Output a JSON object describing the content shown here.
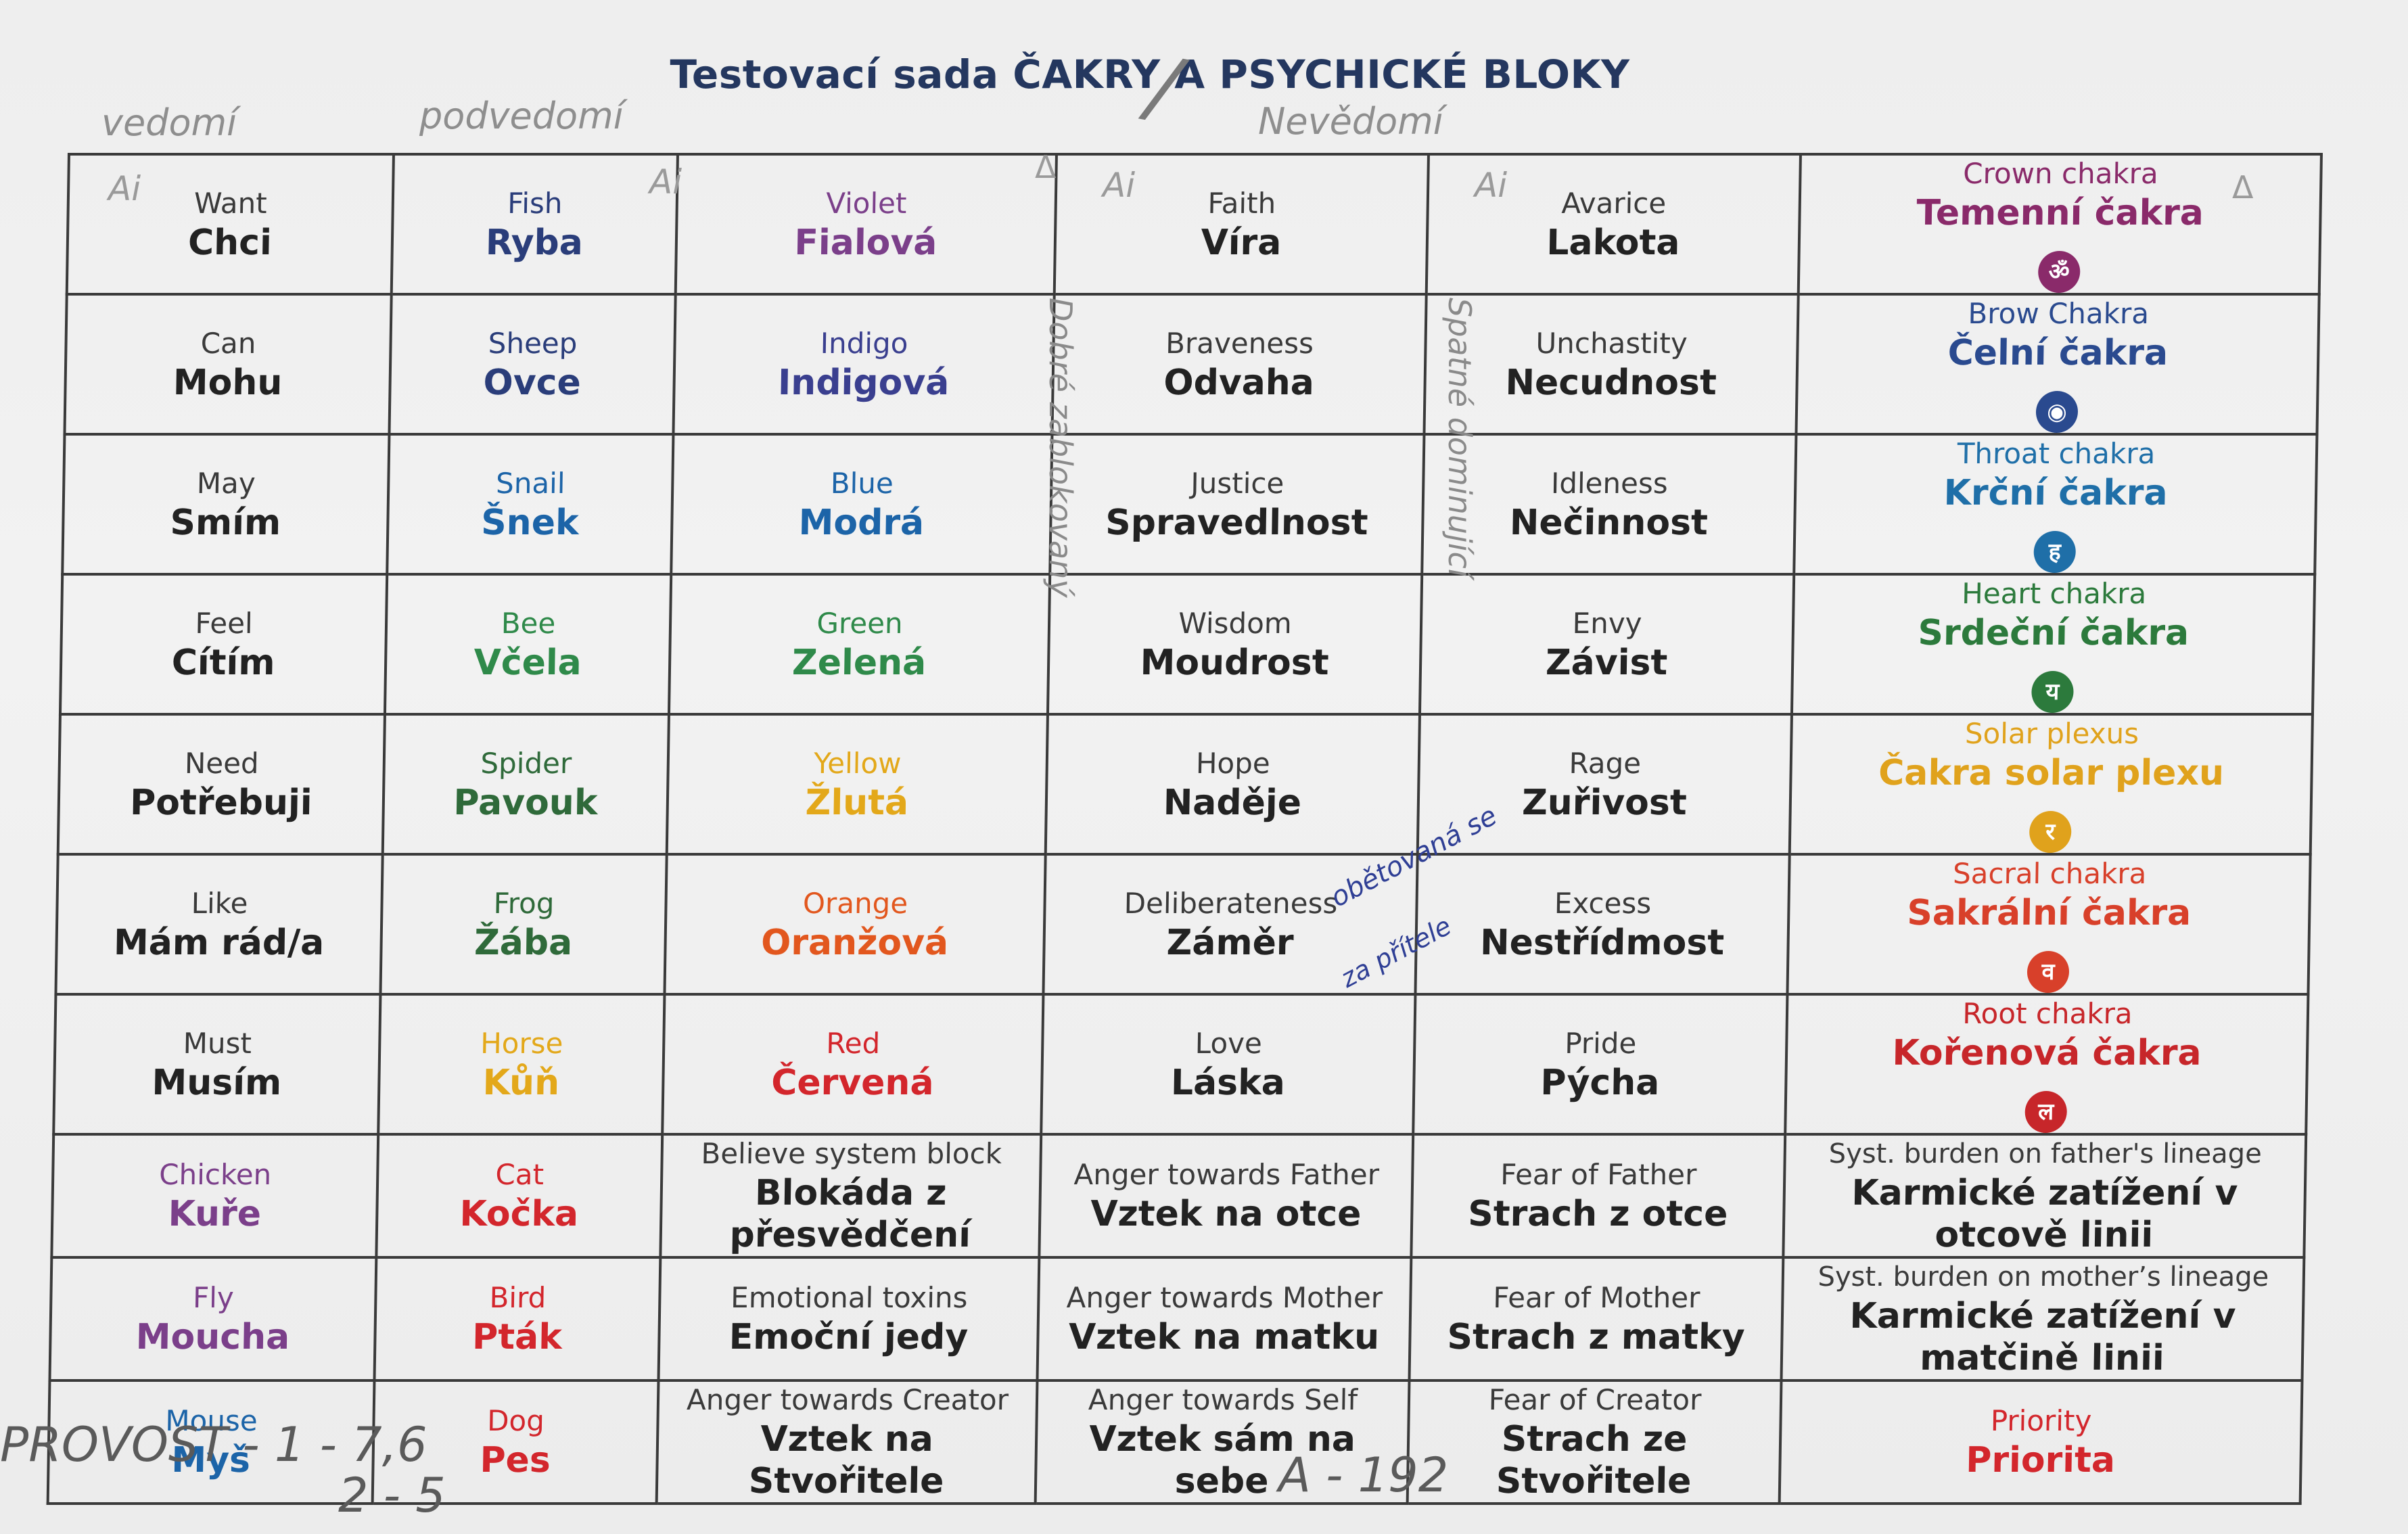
{
  "title": "Testovací sada ČAKRY A PSYCHICKÉ BLOKY",
  "handwriting": {
    "col1_header": "vedomí",
    "col2_header": "podvedomí",
    "col4_header": "Nevědomí",
    "ai_mark": "Ai",
    "triangle_mark": "Δ",
    "vertical_left": "Dobré zablokovaný",
    "vertical_right": "Spatné dominující",
    "love_note_1": "obětovaná se",
    "love_note_2": "za přítele",
    "bottom_left_1": "PROVOST - 1 - 7,6",
    "bottom_left_2": "2 - 5",
    "bottom_center": "A - 192"
  },
  "colors": {
    "ink": "#2d2d2d",
    "navy": "#2a3d7a",
    "purple": "#7b3f8a",
    "indigo": "#3a3f8f",
    "blue": "#1c64a8",
    "green": "#2f8a4a",
    "yellow": "#e3a81a",
    "orange": "#e2571e",
    "red": "#d3262c",
    "crown": "#8a2a6a",
    "brow": "#2a4a8f",
    "throat": "#1f6fa8",
    "heart": "#2c7a3c",
    "solar": "#e0a21c",
    "sacral": "#d8402a",
    "root": "#c7262a"
  },
  "rows": [
    [
      {
        "en": "Want",
        "cz": "Chci",
        "color": "#2d2d2d"
      },
      {
        "en": "Fish",
        "cz": "Ryba",
        "color": "#2a3d7a"
      },
      {
        "en": "Violet",
        "cz": "Fialová",
        "color": "#7b3f8a"
      },
      {
        "en": "Faith",
        "cz": "Víra",
        "color": "#2d2d2d"
      },
      {
        "en": "Avarice",
        "cz": "Lakota",
        "color": "#2d2d2d"
      },
      {
        "en": "Crown chakra",
        "cz": "Temenní čakra",
        "color": "#8a2a6a",
        "icon": "crown-chakra-icon",
        "glyph": "ॐ"
      }
    ],
    [
      {
        "en": "Can",
        "cz": "Mohu",
        "color": "#2d2d2d"
      },
      {
        "en": "Sheep",
        "cz": "Ovce",
        "color": "#2a3d7a"
      },
      {
        "en": "Indigo",
        "cz": "Indigová",
        "color": "#3a3f8f"
      },
      {
        "en": "Braveness",
        "cz": "Odvaha",
        "color": "#2d2d2d"
      },
      {
        "en": "Unchastity",
        "cz": "Necudnost",
        "color": "#2d2d2d"
      },
      {
        "en": "Brow Chakra",
        "cz": "Čelní čakra",
        "color": "#2a4a8f",
        "icon": "brow-chakra-icon",
        "glyph": "◉"
      }
    ],
    [
      {
        "en": "May",
        "cz": "Smím",
        "color": "#2d2d2d"
      },
      {
        "en": "Snail",
        "cz": "Šnek",
        "color": "#1c64a8"
      },
      {
        "en": "Blue",
        "cz": "Modrá",
        "color": "#1c64a8"
      },
      {
        "en": "Justice",
        "cz": "Spravedlnost",
        "color": "#2d2d2d"
      },
      {
        "en": "Idleness",
        "cz": "Nečinnost",
        "color": "#2d2d2d"
      },
      {
        "en": "Throat chakra",
        "cz": "Krční čakra",
        "color": "#1f6fa8",
        "icon": "throat-chakra-icon",
        "glyph": "ह"
      }
    ],
    [
      {
        "en": "Feel",
        "cz": "Cítím",
        "color": "#2d2d2d"
      },
      {
        "en": "Bee",
        "cz": "Včela",
        "color": "#2f8a4a"
      },
      {
        "en": "Green",
        "cz": "Zelená",
        "color": "#2f8a4a"
      },
      {
        "en": "Wisdom",
        "cz": "Moudrost",
        "color": "#2d2d2d"
      },
      {
        "en": "Envy",
        "cz": "Závist",
        "color": "#2d2d2d"
      },
      {
        "en": "Heart chakra",
        "cz": "Srdeční čakra",
        "color": "#2c7a3c",
        "icon": "heart-chakra-icon",
        "glyph": "य"
      }
    ],
    [
      {
        "en": "Need",
        "cz": "Potřebuji",
        "color": "#2d2d2d"
      },
      {
        "en": "Spider",
        "cz": "Pavouk",
        "color": "#2f6a3a"
      },
      {
        "en": "Yellow",
        "cz": "Žlutá",
        "color": "#e3a81a"
      },
      {
        "en": "Hope",
        "cz": "Naděje",
        "color": "#2d2d2d"
      },
      {
        "en": "Rage",
        "cz": "Zuřivost",
        "color": "#2d2d2d"
      },
      {
        "en": "Solar plexus",
        "cz": "Čakra solar plexu",
        "color": "#e0a21c",
        "icon": "solar-plexus-chakra-icon",
        "glyph": "र"
      }
    ],
    [
      {
        "en": "Like",
        "cz": "Mám rád/a",
        "color": "#2d2d2d"
      },
      {
        "en": "Frog",
        "cz": "Žába",
        "color": "#2f6a3a"
      },
      {
        "en": "Orange",
        "cz": "Oranžová",
        "color": "#e2571e"
      },
      {
        "en": "Deliberateness",
        "cz": "Záměr",
        "color": "#2d2d2d"
      },
      {
        "en": "Excess",
        "cz": "Nestřídmost",
        "color": "#2d2d2d"
      },
      {
        "en": "Sacral chakra",
        "cz": "Sakrální čakra",
        "color": "#d8402a",
        "icon": "sacral-chakra-icon",
        "glyph": "व"
      }
    ],
    [
      {
        "en": "Must",
        "cz": "Musím",
        "color": "#2d2d2d"
      },
      {
        "en": "Horse",
        "cz": "Kůň",
        "color": "#e3a81a"
      },
      {
        "en": "Red",
        "cz": "Červená",
        "color": "#d3262c"
      },
      {
        "en": "Love",
        "cz": "Láska",
        "color": "#2d2d2d"
      },
      {
        "en": "Pride",
        "cz": "Pýcha",
        "color": "#2d2d2d"
      },
      {
        "en": "Root chakra",
        "cz": "Kořenová čakra",
        "color": "#c7262a",
        "icon": "root-chakra-icon",
        "glyph": "ल"
      }
    ],
    [
      {
        "en": "Chicken",
        "cz": "Kuře",
        "color": "#7b3f8a"
      },
      {
        "en": "Cat",
        "cz": "Kočka",
        "color": "#d3262c"
      },
      {
        "en": "Believe system block",
        "cz": "Blokáda z přesvědčení",
        "color": "#2d2d2d"
      },
      {
        "en": "Anger towards Father",
        "cz": "Vztek na otce",
        "color": "#2d2d2d"
      },
      {
        "en": "Fear of Father",
        "cz": "Strach z otce",
        "color": "#2d2d2d"
      },
      {
        "en": "Syst. burden on father's lineage",
        "cz": "Karmické zatížení v otcově linii",
        "color": "#2d2d2d"
      }
    ],
    [
      {
        "en": "Fly",
        "cz": "Moucha",
        "color": "#7b3f8a"
      },
      {
        "en": "Bird",
        "cz": "Pták",
        "color": "#d3262c"
      },
      {
        "en": "Emotional toxins",
        "cz": "Emoční jedy",
        "color": "#2d2d2d"
      },
      {
        "en": "Anger towards Mother",
        "cz": "Vztek na matku",
        "color": "#2d2d2d"
      },
      {
        "en": "Fear of Mother",
        "cz": "Strach z matky",
        "color": "#2d2d2d"
      },
      {
        "en": "Syst. burden on mother’s lineage",
        "cz": "Karmické zatížení v matčině linii",
        "color": "#2d2d2d"
      }
    ],
    [
      {
        "en": "Mouse",
        "cz": "Myš",
        "color": "#1c64a8"
      },
      {
        "en": "Dog",
        "cz": "Pes",
        "color": "#d3262c"
      },
      {
        "en": "Anger towards Creator",
        "cz": "Vztek na Stvořitele",
        "color": "#2d2d2d"
      },
      {
        "en": "Anger towards Self",
        "cz": "Vztek sám na sebe",
        "color": "#2d2d2d"
      },
      {
        "en": "Fear of Creator",
        "cz": "Strach ze Stvořitele",
        "color": "#2d2d2d"
      },
      {
        "en": "Priority",
        "cz": "Priorita",
        "color": "#d3262c"
      }
    ]
  ]
}
